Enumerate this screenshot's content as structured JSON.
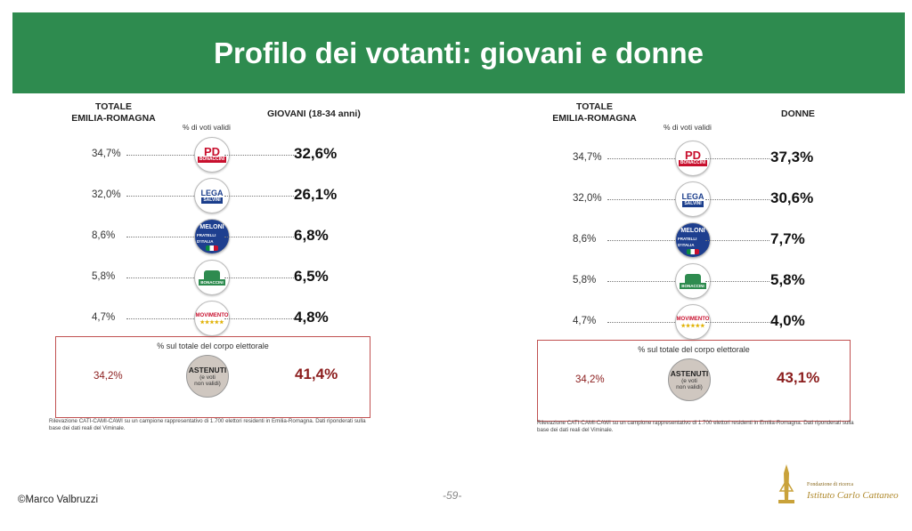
{
  "title": "Profilo dei votanti: giovani e donne",
  "panels": [
    {
      "total_header_line1": "TOTALE",
      "total_header_line2": "EMILIA-ROMAGNA",
      "pct_label": "% di voti validi",
      "group_header": "GIOVANI (18-34 anni)",
      "rows": [
        {
          "total": "34,7%",
          "value": "32,6%",
          "logo": "pd-bonaccini-logo"
        },
        {
          "total": "32,0%",
          "value": "26,1%",
          "logo": "lega-salvini-logo"
        },
        {
          "total": "8,6%",
          "value": "6,8%",
          "logo": "fratelli-ditalia-meloni-logo"
        },
        {
          "total": "5,8%",
          "value": "6,5%",
          "logo": "bonaccini-presidente-logo"
        },
        {
          "total": "4,7%",
          "value": "4,8%",
          "logo": "movimento-5-stelle-logo"
        }
      ],
      "abstention_caption": "% sul totale del corpo elettorale",
      "abstention_total": "34,2%",
      "abstention_value": "41,4%",
      "abstention_logo_line1": "ASTENUTI",
      "abstention_logo_line2": "(e voti",
      "abstention_logo_line3": "non validi)",
      "note": "Rilevazione CATI-CAMI-CAWI su un campione rappresentativo di 1.700 elettori residenti in Emilia-Romagna. Dati riponderati sulla base dei dati reali del Viminale."
    },
    {
      "total_header_line1": "TOTALE",
      "total_header_line2": "EMILIA-ROMAGNA",
      "pct_label": "% di voti validi",
      "group_header": "DONNE",
      "rows": [
        {
          "total": "34,7%",
          "value": "37,3%",
          "logo": "pd-bonaccini-logo"
        },
        {
          "total": "32,0%",
          "value": "30,6%",
          "logo": "lega-salvini-logo"
        },
        {
          "total": "8,6%",
          "value": "7,7%",
          "logo": "fratelli-ditalia-meloni-logo"
        },
        {
          "total": "5,8%",
          "value": "5,8%",
          "logo": "bonaccini-presidente-logo"
        },
        {
          "total": "4,7%",
          "value": "4,0%",
          "logo": "movimento-5-stelle-logo"
        }
      ],
      "abstention_caption": "% sul totale del corpo elettorale",
      "abstention_total": "34,2%",
      "abstention_value": "43,1%",
      "abstention_logo_line1": "ASTENUTI",
      "abstention_logo_line2": "(e voti",
      "abstention_logo_line3": "non validi)",
      "note": "Rilevazione CATI-CAMI-CAWI su un campione rappresentativo di 1.700 elettori residenti in Emilia-Romagna. Dati riponderati sulla base dei dati reali del Viminale."
    }
  ],
  "logos": {
    "pd": {
      "top": "PD",
      "bottom": "BONACCINI"
    },
    "lega": {
      "top": "LEGA",
      "bottom": "SALVINI"
    },
    "fdi": {
      "top": "MELONI",
      "bottom": "FRATELLI D'ITALIA"
    },
    "bon": {
      "bottom": "BONACCINI"
    },
    "m5s": {
      "top": "MOVIMENTO",
      "bottom": "★★★★★"
    }
  },
  "footer": {
    "author": "©Marco Valbruzzi",
    "page": "-59-",
    "institute_line1": "Fondazione di ricerca",
    "institute_line2": "Istituto Carlo Cattaneo"
  },
  "colors": {
    "banner": "#2e8b4f",
    "abstention": "#8b1d1d"
  }
}
